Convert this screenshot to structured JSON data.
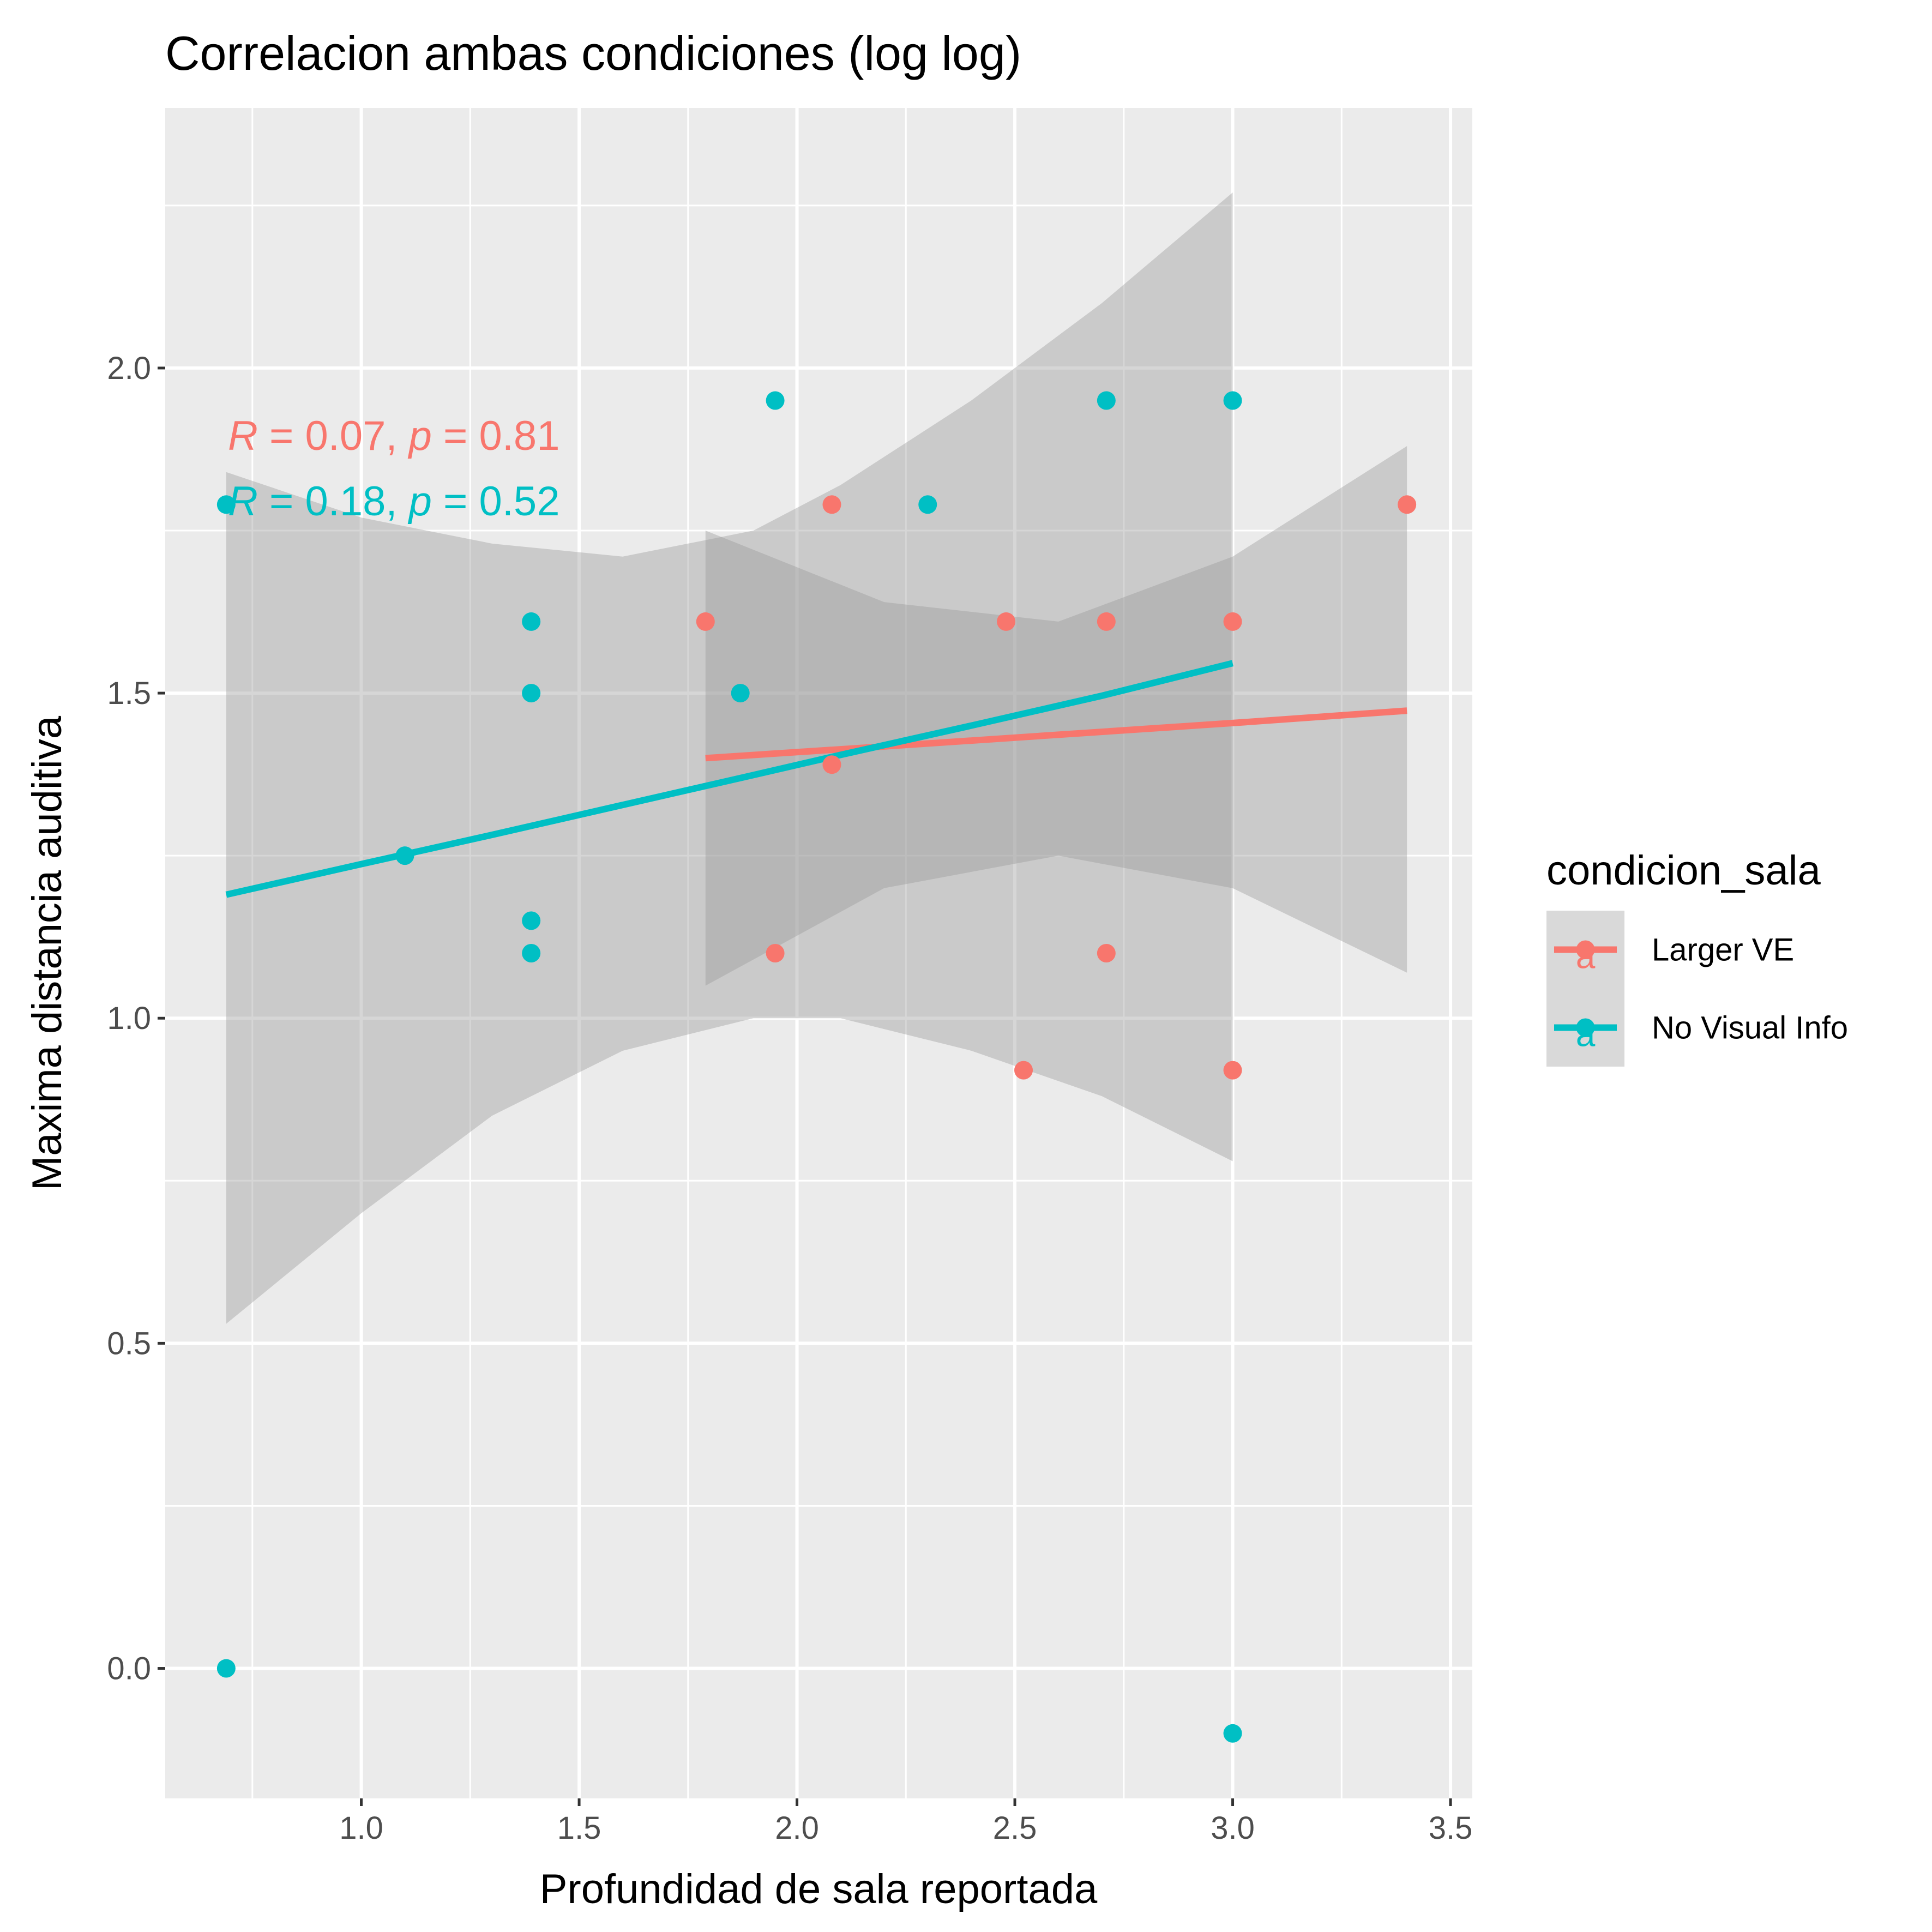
{
  "chart_data": {
    "type": "scatter",
    "title": "Correlacion ambas condiciones (log log)",
    "xlabel": "Profundidad de sala reportada",
    "ylabel": "Maxima distancia auditiva",
    "xlim": [
      0.55,
      3.55
    ],
    "ylim": [
      -0.2,
      2.4
    ],
    "x_ticks": [
      "1.0",
      "1.5",
      "2.0",
      "2.5",
      "3.0",
      "3.5"
    ],
    "y_ticks": [
      "0.0",
      "0.5",
      "1.0",
      "1.5",
      "2.0"
    ],
    "grid": true,
    "legend": {
      "title": "condicion_sala",
      "position": "right",
      "items": [
        "Larger VE",
        "No Visual Info"
      ],
      "key_glyph": "a"
    },
    "series": [
      {
        "name": "Larger VE",
        "color": "#F8766D",
        "points": [
          {
            "x": 1.79,
            "y": 1.61
          },
          {
            "x": 1.95,
            "y": 1.1
          },
          {
            "x": 2.08,
            "y": 1.79
          },
          {
            "x": 2.08,
            "y": 1.39
          },
          {
            "x": 2.48,
            "y": 1.61
          },
          {
            "x": 2.52,
            "y": 0.92
          },
          {
            "x": 2.71,
            "y": 1.61
          },
          {
            "x": 2.71,
            "y": 1.1
          },
          {
            "x": 3.0,
            "y": 1.61
          },
          {
            "x": 3.0,
            "y": 0.92
          },
          {
            "x": 3.4,
            "y": 1.79
          }
        ],
        "fit": {
          "x": [
            1.79,
            2.2,
            2.6,
            3.0,
            3.4
          ],
          "y": [
            1.4,
            1.418,
            1.436,
            1.454,
            1.473
          ],
          "lower": [
            1.05,
            1.2,
            1.25,
            1.2,
            1.07
          ],
          "upper": [
            1.75,
            1.64,
            1.61,
            1.71,
            1.88
          ]
        },
        "stat_label": {
          "R": "0.07",
          "p": "0.81"
        }
      },
      {
        "name": "No Visual Info",
        "color": "#00BFC4",
        "points": [
          {
            "x": 0.69,
            "y": 1.79
          },
          {
            "x": 0.69,
            "y": 0.0
          },
          {
            "x": 1.1,
            "y": 1.25
          },
          {
            "x": 1.39,
            "y": 1.61
          },
          {
            "x": 1.39,
            "y": 1.5
          },
          {
            "x": 1.39,
            "y": 1.15
          },
          {
            "x": 1.39,
            "y": 1.1
          },
          {
            "x": 1.87,
            "y": 1.5
          },
          {
            "x": 1.95,
            "y": 1.95
          },
          {
            "x": 2.3,
            "y": 1.79
          },
          {
            "x": 2.71,
            "y": 1.95
          },
          {
            "x": 3.0,
            "y": 1.95
          },
          {
            "x": 3.0,
            "y": -0.1
          }
        ],
        "fit": {
          "x": [
            0.69,
            1.0,
            1.3,
            1.6,
            1.9,
            2.1,
            2.4,
            2.7,
            3.0
          ],
          "y": [
            1.19,
            1.237,
            1.282,
            1.328,
            1.374,
            1.405,
            1.45,
            1.496,
            1.546
          ],
          "lower": [
            0.53,
            0.7,
            0.85,
            0.95,
            1.0,
            1.0,
            0.95,
            0.88,
            0.78
          ],
          "upper": [
            1.84,
            1.77,
            1.73,
            1.71,
            1.75,
            1.82,
            1.95,
            2.1,
            2.27
          ]
        },
        "stat_label": {
          "R": "0.18",
          "p": "0.52"
        }
      }
    ]
  }
}
